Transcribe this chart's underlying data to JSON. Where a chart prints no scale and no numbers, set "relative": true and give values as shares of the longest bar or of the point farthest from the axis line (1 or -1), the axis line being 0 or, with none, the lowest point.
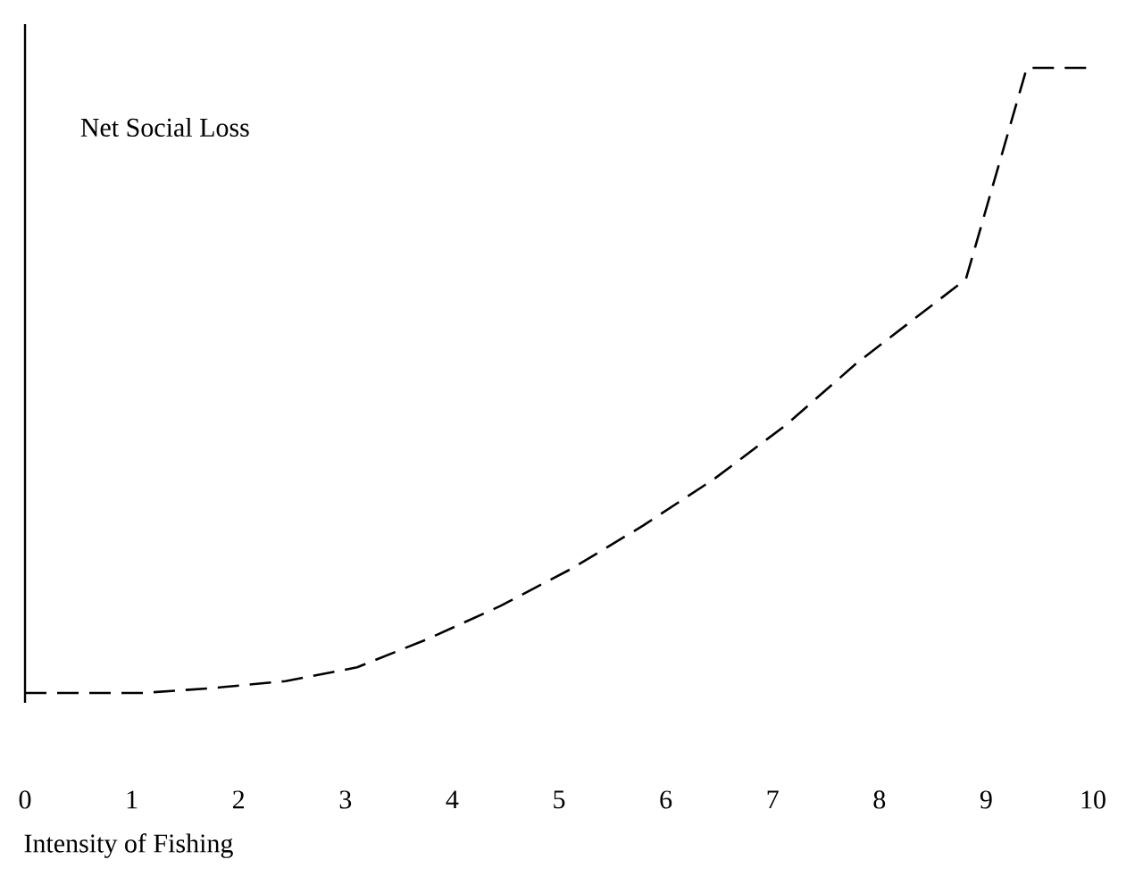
{
  "chart_data": {
    "type": "line",
    "relative": true,
    "ylabel": "Net Social Loss",
    "xlabel": "Intensity of Fishing",
    "x": [
      0,
      0.43,
      1.1,
      1.77,
      2.44,
      3.11,
      3.78,
      4.45,
      5.12,
      5.79,
      6.45,
      7.12,
      7.79,
      8.81,
      9.38,
      10
    ],
    "values": [
      0,
      0,
      0,
      0.008,
      0.019,
      0.041,
      0.087,
      0.139,
      0.199,
      0.268,
      0.342,
      0.428,
      0.528,
      0.662,
      1,
      1
    ],
    "color": "#000000",
    "line_style": "dashed",
    "marker": "none",
    "xlim": [
      0,
      10
    ],
    "xticks": [
      0,
      1,
      2,
      3,
      4,
      5,
      6,
      7,
      8,
      9,
      10
    ]
  }
}
